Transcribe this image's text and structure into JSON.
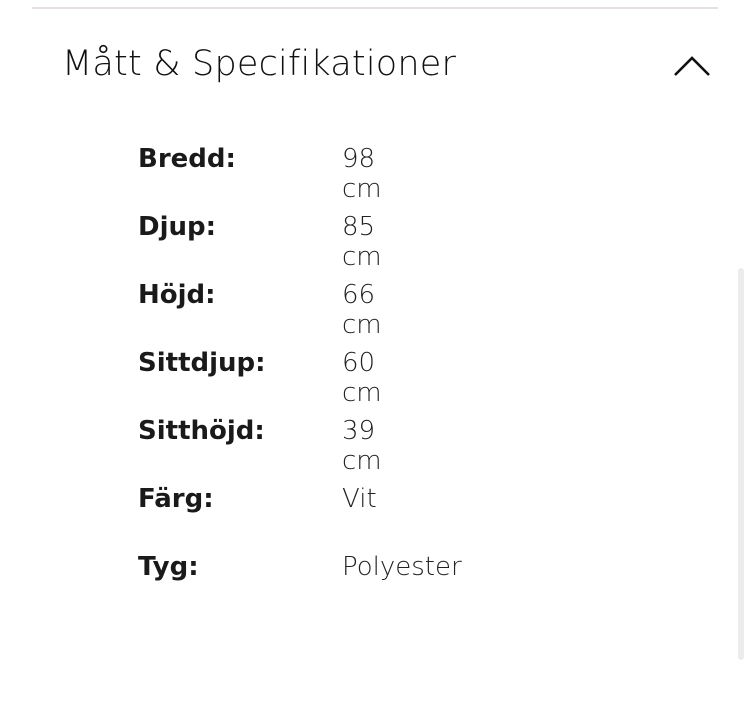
{
  "section": {
    "title": "Mått & Specifikationer",
    "expanded": true,
    "toggle_icon": "chevron-up-icon"
  },
  "specs": [
    {
      "label": "Bredd:",
      "value": "98 cm"
    },
    {
      "label": "Djup:",
      "value": "85 cm"
    },
    {
      "label": "Höjd:",
      "value": "66 cm"
    },
    {
      "label": "Sittdjup:",
      "value": "60 cm"
    },
    {
      "label": "Sitthöjd:",
      "value": "39 cm"
    },
    {
      "label": "Färg:",
      "value": "Vit"
    },
    {
      "label": "Tyg:",
      "value": "Polyester"
    }
  ]
}
